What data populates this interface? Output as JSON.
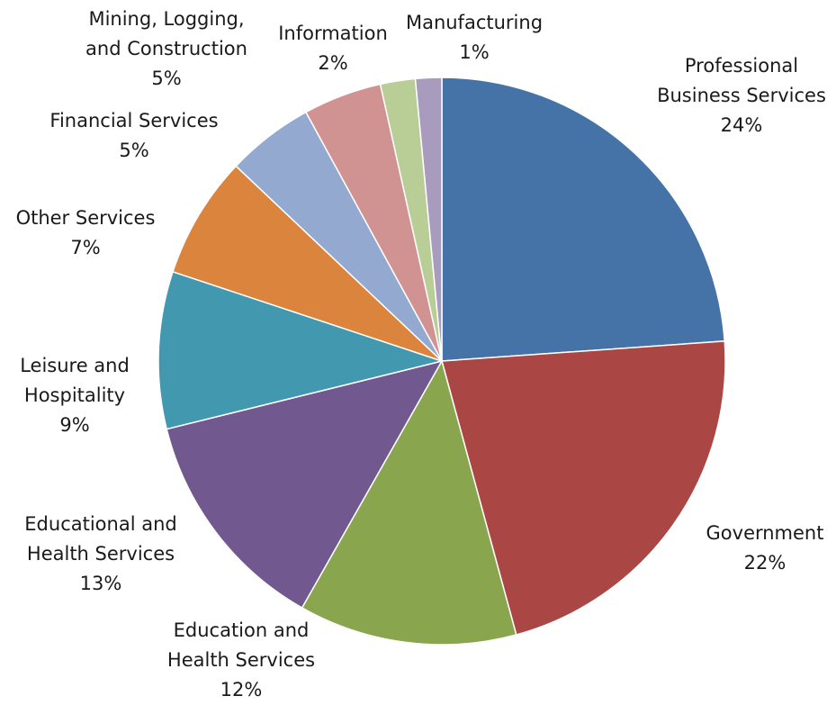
{
  "chart_data": {
    "type": "pie",
    "title": "",
    "start_angle_deg": 0,
    "direction": "clockwise",
    "slices": [
      {
        "label_lines": [
          "Professional",
          "Business Services"
        ],
        "value": 24,
        "value_label": "24%",
        "color": "#4572A7"
      },
      {
        "label_lines": [
          "Government"
        ],
        "value": 22,
        "value_label": "22%",
        "color": "#AA4643"
      },
      {
        "label_lines": [
          "Education and",
          "Health Services"
        ],
        "value": 12.5,
        "value_label": "12%",
        "color": "#89A54E"
      },
      {
        "label_lines": [
          "Educational and",
          "Health Services"
        ],
        "value": 13,
        "value_label": "13%",
        "color": "#71588F"
      },
      {
        "label_lines": [
          "Leisure and",
          "Hospitality"
        ],
        "value": 9,
        "value_label": "9%",
        "color": "#4198AF"
      },
      {
        "label_lines": [
          "Other Services"
        ],
        "value": 7,
        "value_label": "7%",
        "color": "#DB843D"
      },
      {
        "label_lines": [
          "Financial Services"
        ],
        "value": 5,
        "value_label": "5%",
        "color": "#93A9CF"
      },
      {
        "label_lines": [
          "Mining, Logging,",
          "and Construction"
        ],
        "value": 4.5,
        "value_label": "5%",
        "color": "#D19392"
      },
      {
        "label_lines": [
          "Information"
        ],
        "value": 2,
        "value_label": "2%",
        "color": "#B9CD96"
      },
      {
        "label_lines": [
          "Manufacturing"
        ],
        "value": 1.5,
        "value_label": "1%",
        "color": "#A99BBD"
      }
    ]
  }
}
